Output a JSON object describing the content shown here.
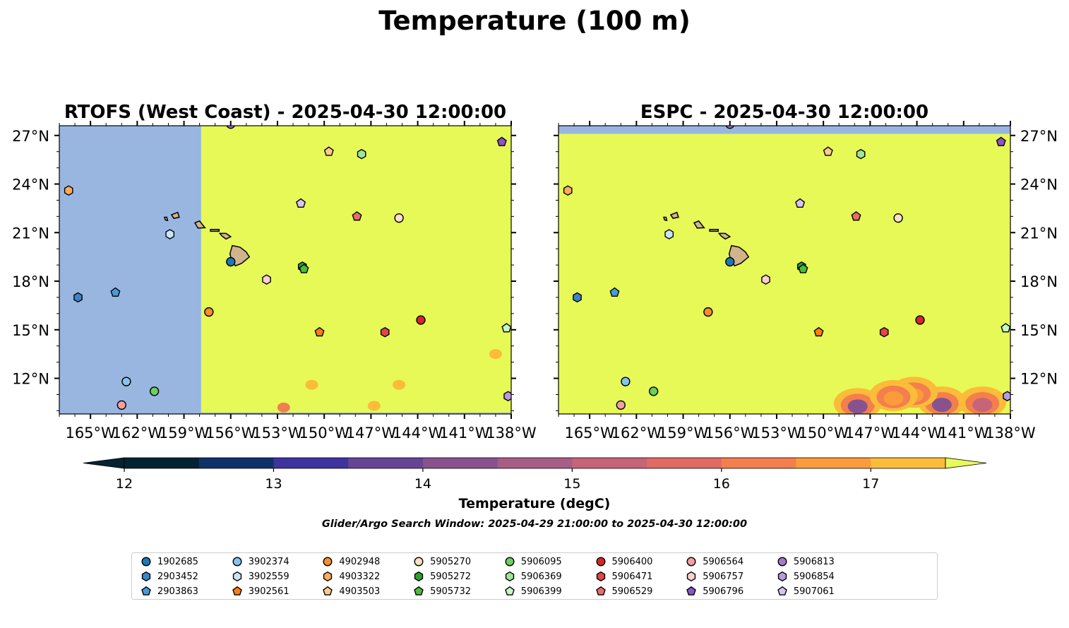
{
  "figure": {
    "suptitle": "Temperature (100 m)",
    "subtitle": "Glider/Argo Search Window: 2025-04-29 21:00:00 to 2025-04-30 12:00:00"
  },
  "colorbar": {
    "label": "Temperature (degC)",
    "min": 12,
    "max": 17.5,
    "step": 0.5,
    "ticks": [
      12,
      13,
      14,
      15,
      16,
      17
    ],
    "extend": "both",
    "colormap": "thermal",
    "colors": [
      "#032333",
      "#0f3169",
      "#3f339f",
      "#674396",
      "#87528e",
      "#a65d86",
      "#c66478",
      "#e06b64",
      "#f27f4d",
      "#fb9b3c",
      "#fbbc3a",
      "#f6d846",
      "#e8fa5b"
    ],
    "under_color": "#042333",
    "over_color": "#e8fa5b"
  },
  "colors": {
    "no_data": "#98b6e0",
    "warm_fill": "#e6f957",
    "land": "#d2b48c"
  },
  "chart_data": [
    {
      "type": "heatmap",
      "title": "RTOFS (West Coast) - 2025-04-30 12:00:00",
      "xlim": [
        -167,
        -138
      ],
      "ylim": [
        9.8,
        27.6
      ],
      "xticks": [
        -165,
        -162,
        -159,
        -156,
        -153,
        -150,
        -147,
        -144,
        -141,
        -138
      ],
      "xtick_labels": [
        "165°W",
        "162°W",
        "159°W",
        "156°W",
        "153°W",
        "150°W",
        "147°W",
        "144°W",
        "141°W",
        "138°W"
      ],
      "yticks": [
        12,
        15,
        18,
        21,
        24,
        27
      ],
      "ytick_labels": [
        "12°N",
        "15°N",
        "18°N",
        "21°N",
        "24°N",
        "27°N"
      ],
      "yaxis_side": "left",
      "field": {
        "background_value": ">17.5",
        "no_data_west_of_lon": -157.9,
        "warm_patches_degC": [
          {
            "lon": -139.0,
            "lat": 13.5,
            "value": 17.1
          },
          {
            "lon": -150.8,
            "lat": 11.6,
            "value": 17.3
          },
          {
            "lon": -145.2,
            "lat": 11.6,
            "value": 17.1
          },
          {
            "lon": -152.6,
            "lat": 10.2,
            "value": 16.2
          },
          {
            "lon": -146.8,
            "lat": 10.3,
            "value": 17.2
          }
        ]
      }
    },
    {
      "type": "heatmap",
      "title": "ESPC - 2025-04-30 12:00:00",
      "xlim": [
        -167,
        -138
      ],
      "ylim": [
        9.8,
        27.6
      ],
      "xticks": [
        -165,
        -162,
        -159,
        -156,
        -153,
        -150,
        -147,
        -144,
        -141,
        -138
      ],
      "xtick_labels": [
        "165°W",
        "162°W",
        "159°W",
        "156°W",
        "153°W",
        "150°W",
        "147°W",
        "144°W",
        "141°W",
        "138°W"
      ],
      "yticks": [
        12,
        15,
        18,
        21,
        24,
        27
      ],
      "ytick_labels": [
        "12°N",
        "15°N",
        "18°N",
        "21°N",
        "24°N",
        "27°N"
      ],
      "yaxis_side": "right",
      "field": {
        "background_value": ">17.5",
        "no_data_north_of_lat": 27.1,
        "cool_regions_degC": [
          {
            "lon": -147.8,
            "lat": 10.7,
            "value": 14.1
          },
          {
            "lon": -142.4,
            "lat": 10.8,
            "value": 14.3
          },
          {
            "lon": -139.8,
            "lat": 10.8,
            "value": 15.4
          },
          {
            "lon": -144.2,
            "lat": 11.4,
            "value": 16.6
          },
          {
            "lon": -145.5,
            "lat": 11.2,
            "value": 16.8
          }
        ]
      }
    }
  ],
  "islands": [
    {
      "name": "Hawaii",
      "lon": -155.5,
      "lat": 19.6
    },
    {
      "name": "Maui",
      "lon": -156.3,
      "lat": 20.8
    },
    {
      "name": "Molokai",
      "lon": -157.0,
      "lat": 21.1
    },
    {
      "name": "Oahu",
      "lon": -158.0,
      "lat": 21.5
    },
    {
      "name": "Kauai",
      "lon": -159.5,
      "lat": 22.05
    },
    {
      "name": "Niihau",
      "lon": -160.2,
      "lat": 21.85
    }
  ],
  "floats": [
    {
      "id": "1902685",
      "marker": "circle",
      "color": "#1f77b4",
      "lon": -156.0,
      "lat": 19.2
    },
    {
      "id": "2903452",
      "marker": "hexagon",
      "color": "#3d85c6",
      "lon": -165.8,
      "lat": 17.0
    },
    {
      "id": "2903863",
      "marker": "pentagon",
      "color": "#4a9ad8",
      "lon": -163.4,
      "lat": 17.3
    },
    {
      "id": "3902374",
      "marker": "circle",
      "color": "#86c3ec",
      "lon": -162.7,
      "lat": 11.8
    },
    {
      "id": "3902559",
      "marker": "hexagon",
      "color": "#c9e4fb",
      "lon": -159.9,
      "lat": 20.9
    },
    {
      "id": "3902561",
      "marker": "pentagon",
      "color": "#ff7f0e",
      "lon": -150.3,
      "lat": 14.85
    },
    {
      "id": "4902948",
      "marker": "circle",
      "color": "#f98d2f",
      "lon": -157.4,
      "lat": 16.1
    },
    {
      "id": "4903322",
      "marker": "hexagon",
      "color": "#fdab5c",
      "lon": -166.4,
      "lat": 23.6
    },
    {
      "id": "4903503",
      "marker": "pentagon",
      "color": "#fdc98f",
      "lon": -149.7,
      "lat": 26.0
    },
    {
      "id": "5905270",
      "marker": "circle",
      "color": "#fde0c5",
      "lon": -145.2,
      "lat": 21.9
    },
    {
      "id": "5905272",
      "marker": "hexagon",
      "color": "#2ca02c",
      "lon": -151.4,
      "lat": 18.9
    },
    {
      "id": "5905732",
      "marker": "pentagon",
      "color": "#4cbc3c",
      "lon": -151.3,
      "lat": 18.75
    },
    {
      "id": "5906095",
      "marker": "circle",
      "color": "#6ccf5e",
      "lon": -160.9,
      "lat": 11.2
    },
    {
      "id": "5906369",
      "marker": "hexagon",
      "color": "#9ee597",
      "lon": -147.6,
      "lat": 25.85
    },
    {
      "id": "5906399",
      "marker": "pentagon",
      "color": "#c7f7c6",
      "lon": -138.3,
      "lat": 15.1
    },
    {
      "id": "5906400",
      "marker": "circle",
      "color": "#d62728",
      "lon": -143.8,
      "lat": 15.6
    },
    {
      "id": "5906471",
      "marker": "hexagon",
      "color": "#e0474a",
      "lon": -146.1,
      "lat": 14.85
    },
    {
      "id": "5906529",
      "marker": "pentagon",
      "color": "#ec6b6d",
      "lon": -147.9,
      "lat": 22.0
    },
    {
      "id": "5906564",
      "marker": "circle",
      "color": "#f3a0a1",
      "lon": -163.0,
      "lat": 10.35
    },
    {
      "id": "5906757",
      "marker": "hexagon",
      "color": "#fbd0d2",
      "lon": -153.7,
      "lat": 18.1
    },
    {
      "id": "5906796",
      "marker": "pentagon",
      "color": "#8a55c6",
      "lon": -138.6,
      "lat": 26.6
    },
    {
      "id": "5906813",
      "marker": "circle",
      "color": "#a07dcb",
      "lon": -156.0,
      "lat": 27.7
    },
    {
      "id": "5906854",
      "marker": "hexagon",
      "color": "#b99be0",
      "lon": -138.2,
      "lat": 10.9
    },
    {
      "id": "5907061",
      "marker": "pentagon",
      "color": "#d7c4f1",
      "lon": -151.5,
      "lat": 22.8
    }
  ]
}
